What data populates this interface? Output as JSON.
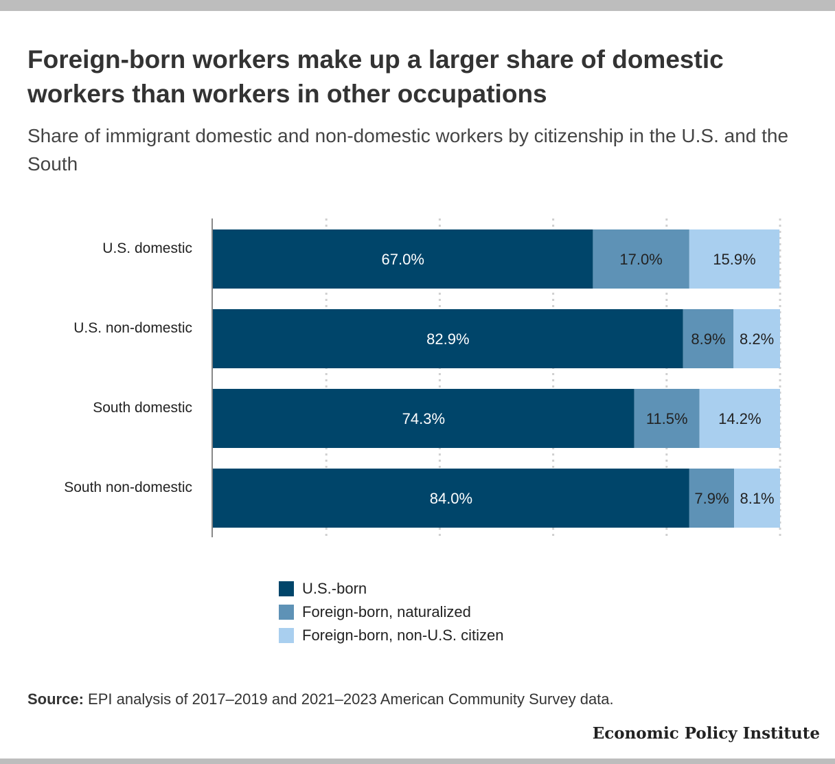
{
  "title": "Foreign-born workers make up a larger share of domestic workers than workers in other occupations",
  "subtitle": "Share of immigrant domestic and non-domestic workers by citizenship in the U.S. and the South",
  "source": {
    "label": "Source:",
    "text": "EPI analysis of 2017–2019 and 2021–2023 American Community Survey data."
  },
  "organization": "Economic Policy Institute",
  "colors": {
    "us_born": "#00456A",
    "naturalized": "#5E92B6",
    "non_citizen": "#A9CFEF"
  },
  "chart_data": {
    "type": "bar",
    "orientation": "horizontal",
    "stacked": true,
    "categories": [
      "U.S. domestic",
      "U.S. non-domestic",
      "South domestic",
      "South non-domestic"
    ],
    "series": [
      {
        "name": "U.S.-born",
        "values": [
          67.0,
          82.9,
          74.3,
          84.0
        ],
        "labels": [
          "67.0%",
          "82.9%",
          "74.3%",
          "84.0%"
        ],
        "color": "#00456A"
      },
      {
        "name": "Foreign-born, naturalized",
        "values": [
          17.0,
          8.9,
          11.5,
          7.9
        ],
        "labels": [
          "17.0%",
          "8.9%",
          "11.5%",
          "7.9%"
        ],
        "color": "#5E92B6"
      },
      {
        "name": "Foreign-born, non-U.S. citizen",
        "values": [
          15.9,
          8.2,
          14.2,
          8.1
        ],
        "labels": [
          "15.9%",
          "8.2%",
          "14.2%",
          "8.1%"
        ],
        "color": "#A9CFEF"
      }
    ],
    "xlim": [
      0,
      100
    ],
    "grid": true,
    "legend_position": "bottom"
  }
}
